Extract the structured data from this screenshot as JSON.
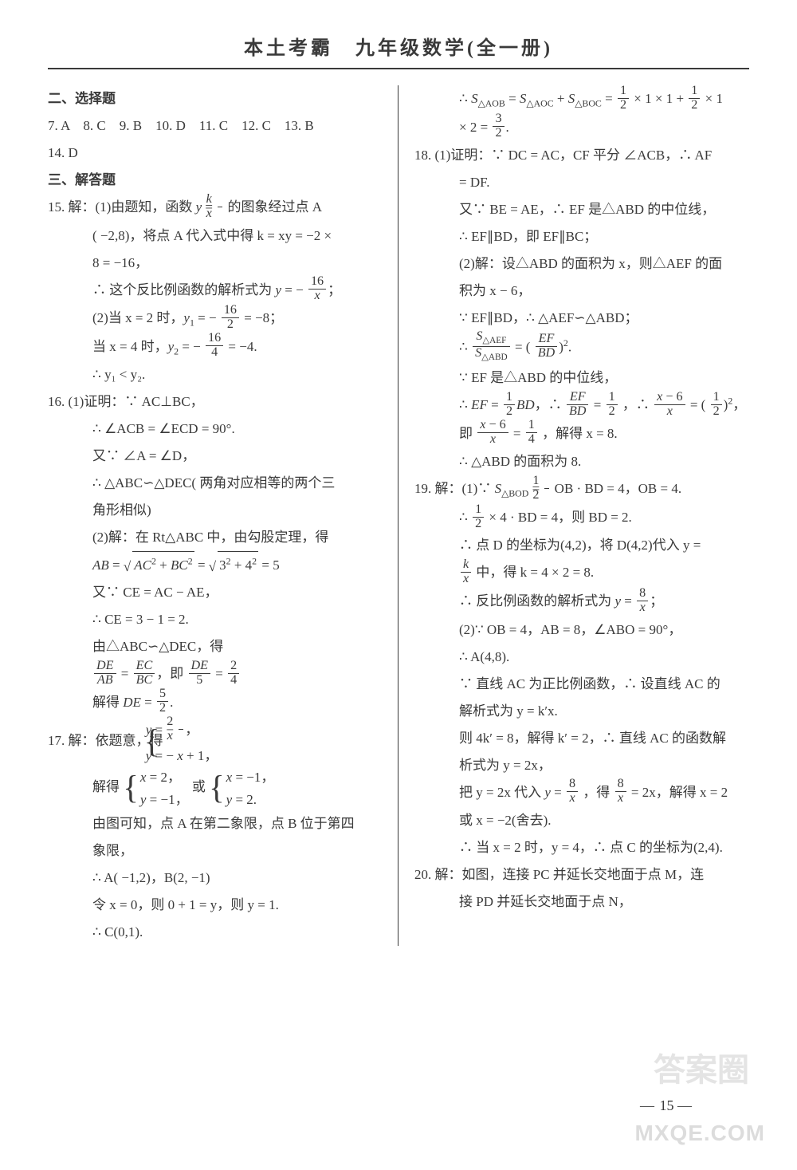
{
  "header": "本土考霸　九年级数学(全一册)",
  "page_number": "15",
  "watermark_main": "MXQE.COM",
  "watermark_top": "答案圈",
  "colors": {
    "text": "#3a3a3a",
    "background": "#ffffff",
    "rule": "#3a3a3a",
    "watermark": "rgba(130,130,130,0.28)"
  },
  "left": {
    "sec2_title": "二、选择题",
    "mc_line1": "7. A　8. C　9. B　10. D　11. C　12. C　13. B",
    "mc_line2": "14. D",
    "sec3_title": "三、解答题",
    "q15_1a": "15. 解：(1)由题知，函数 ",
    "q15_1b": " 的图象经过点 A",
    "q15_2": "( −2,8)，将点 A 代入式中得 k = xy = −2 ×",
    "q15_3": "8 = −16，",
    "q15_4a": "∴ 这个反比例函数的解析式为 ",
    "q15_5a": "(2)当 x = 2 时，",
    "q15_5b": " = −8；",
    "q15_6a": "当 x = 4 时，",
    "q15_6b": " = −4.",
    "q15_7": "∴ y₁ < y₂.",
    "q16_1": "16. (1)证明：∵ AC⊥BC，",
    "q16_2": "∴ ∠ACB = ∠ECD = 90°.",
    "q16_3": "又∵ ∠A = ∠D，",
    "q16_4": "∴ △ABC∽△DEC( 两角对应相等的两个三",
    "q16_5": "角形相似)",
    "q16_6": "(2)解：在 Rt△ABC 中，由勾股定理，得",
    "q16_7b": " = 5",
    "q16_8": "又∵ CE = AC − AE，",
    "q16_9": "∴ CE = 3 − 1 = 2.",
    "q16_10": "由△ABC∽△DEC，得",
    "q16_12a": "解得 ",
    "q17_1": "17. 解：依题意，得",
    "q17_3a": "解得",
    "q17_3c": "或",
    "q17_4": "由图可知，点 A 在第二象限，点 B 位于第四",
    "q17_5": "象限，",
    "q17_6": "∴ A( −1,2)，B(2, −1)",
    "q17_7": "令 x = 0，则 0 + 1 = y，则 y = 1.",
    "q17_8": "∴ C(0,1)."
  },
  "right": {
    "r1a": "∴ ",
    "r1b": " × 1 × 1 + ",
    "r1c": " × 1",
    "r2a": "× 2 = ",
    "q18_1": "18. (1)证明：∵ DC = AC，CF 平分 ∠ACB，∴ AF",
    "q18_2": "= DF.",
    "q18_3": "又∵ BE = AE，∴ EF 是△ABD 的中位线，",
    "q18_4": "∴ EF∥BD，即 EF∥BC；",
    "q18_5": "(2)解：设△ABD 的面积为 x，则△AEF 的面",
    "q18_6": "积为 x − 6，",
    "q18_7": "∵ EF∥BD，∴ △AEF∽△ABD；",
    "q18_8a": "∴ ",
    "q18_9": "∵ EF 是△ABD 的中位线，",
    "q18_10a": "∴ ",
    "q18_10d": "，∴ ",
    "q18_11a": "即",
    "q18_11b": "，解得 x = 8.",
    "q18_12": "∴ △ABD 的面积为 8.",
    "q19_1a": "19. 解：(1)∵ ",
    "q19_1b": "OB · BD = 4，OB = 4.",
    "q19_2a": "∴ ",
    "q19_2b": " × 4 · BD = 4，则 BD = 2.",
    "q19_3": "∴ 点 D 的坐标为(4,2)，将 D(4,2)代入 y =",
    "q19_4a": " 中，得 k = 4 × 2 = 8.",
    "q19_5a": "∴ 反比例函数的解析式为 ",
    "q19_6": "(2)∵ OB = 4，AB = 8，∠ABO = 90°，",
    "q19_7": "∴ A(4,8).",
    "q19_8": "∵ 直线 AC 为正比例函数，∴ 设直线 AC 的",
    "q19_9": "解析式为 y = k′x.",
    "q19_10": "则 4k′ = 8，解得 k′ = 2，∴ 直线 AC 的函数解",
    "q19_11": "析式为 y = 2x，",
    "q19_12a": "把 y = 2x 代入 ",
    "q19_12b": "，得 ",
    "q19_12c": " = 2x，解得 x = 2",
    "q19_13": "或 x = −2(舍去).",
    "q19_14": "∴ 当 x = 2 时，y = 4，∴ 点 C 的坐标为(2,4).",
    "q20_1": "20. 解：如图，连接 PC 并延长交地面于点 M，连",
    "q20_2": "接 PD 并延长交地面于点 N，"
  }
}
